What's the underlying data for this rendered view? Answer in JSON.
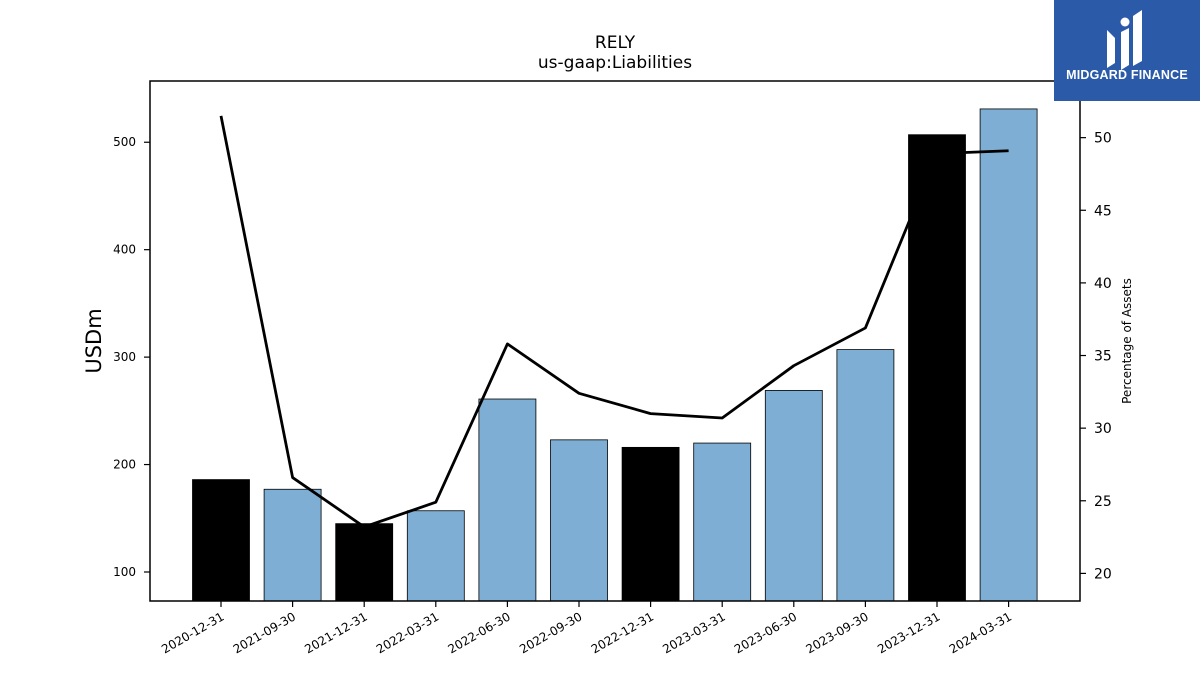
{
  "chart_data": {
    "type": "bar",
    "title": "RELY",
    "subtitle": "us-gaap:Liabilities",
    "ylabel": "USDm",
    "ylabel_right": "Percentage of Assets",
    "categories": [
      "2020-12-31",
      "2021-09-30",
      "2021-12-31",
      "2022-03-31",
      "2022-06-30",
      "2022-09-30",
      "2022-12-31",
      "2023-03-31",
      "2023-06-30",
      "2023-09-30",
      "2023-12-31",
      "2024-03-31"
    ],
    "values": [
      186,
      177,
      145,
      157,
      261,
      223,
      216,
      220,
      269,
      307,
      507,
      531
    ],
    "bar_colors": [
      "#000000",
      "#7eaed3",
      "#000000",
      "#7eaed3",
      "#7eaed3",
      "#7eaed3",
      "#000000",
      "#7eaed3",
      "#7eaed3",
      "#7eaed3",
      "#000000",
      "#7eaed3"
    ],
    "ylim": [
      73,
      557
    ],
    "yticks": [
      100,
      200,
      300,
      400,
      500
    ],
    "line_series": {
      "values": [
        51.5,
        26.6,
        23.2,
        24.9,
        35.8,
        32.4,
        31.0,
        30.7,
        34.3,
        36.9,
        48.9,
        49.1
      ],
      "color": "#000000"
    },
    "ylim_right": [
      18.1,
      53.9
    ],
    "yticks_right": [
      20,
      25,
      30,
      35,
      40,
      45,
      50
    ],
    "grid": false,
    "legend": "none"
  },
  "logo": {
    "text": "MIDGARD FINANCE",
    "background": "#2a5aa8"
  }
}
